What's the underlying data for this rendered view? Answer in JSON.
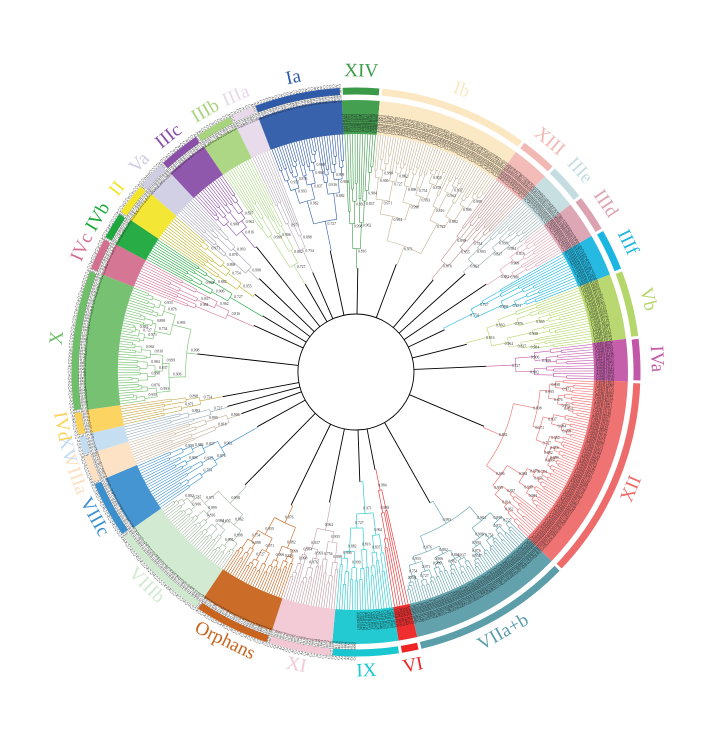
{
  "figure": {
    "type": "circular phylogenetic tree",
    "clades": [
      {
        "name": "XIV",
        "start": -3,
        "end": 5,
        "color": "#3a9a48"
      },
      {
        "name": "Ib",
        "start": 5,
        "end": 36,
        "color": "#fbe7c2"
      },
      {
        "name": "XIII",
        "start": 36,
        "end": 44,
        "color": "#f2b8b4"
      },
      {
        "name": "IIIe",
        "start": 44,
        "end": 52,
        "color": "#c5dde0"
      },
      {
        "name": "IIId",
        "start": 52,
        "end": 60,
        "color": "#dca2b2"
      },
      {
        "name": "IIIf",
        "start": 60,
        "end": 69,
        "color": "#1ab5e0"
      },
      {
        "name": "Vb",
        "start": 69,
        "end": 83,
        "color": "#b5d66a"
      },
      {
        "name": "IVa",
        "start": 83,
        "end": 92,
        "color": "#c256a8"
      },
      {
        "name": "XII",
        "start": 92,
        "end": 134,
        "color": "#ee6b6b"
      },
      {
        "name": "VIIa+b",
        "start": 134,
        "end": 167,
        "color": "#5b9da9"
      },
      {
        "name": "VI",
        "start": 167,
        "end": 171,
        "color": "#ee2424"
      },
      {
        "name": "IX",
        "start": 171,
        "end": 185,
        "color": "#18c7cf"
      },
      {
        "name": "XI",
        "start": 185,
        "end": 198,
        "color": "#f2c8d4"
      },
      {
        "name": "Orphans",
        "start": 198,
        "end": 214,
        "color": "#c8641e"
      },
      {
        "name": "VIIIb",
        "start": 214,
        "end": 235,
        "color": "#cfe9cf"
      },
      {
        "name": "VIIIc",
        "start": 235,
        "end": 247,
        "color": "#3a8fcf"
      },
      {
        "name": "VIIIa",
        "start": 247,
        "end": 253,
        "color": "#fde0c2"
      },
      {
        "name": "XV",
        "start": 253,
        "end": 257,
        "color": "#c2dcf0"
      },
      {
        "name": "IVd",
        "start": 257,
        "end": 262,
        "color": "#fcd25a"
      },
      {
        "name": "X",
        "start": 262,
        "end": 291,
        "color": "#6fbf6a"
      },
      {
        "name": "IVc",
        "start": 291,
        "end": 298,
        "color": "#d36f8f"
      },
      {
        "name": "IVb",
        "start": 298,
        "end": 304,
        "color": "#1ca83c"
      },
      {
        "name": "II",
        "start": 304,
        "end": 311,
        "color": "#f2e52a"
      },
      {
        "name": "Va",
        "start": 311,
        "end": 317,
        "color": "#cfcde4"
      },
      {
        "name": "IIIc",
        "start": 317,
        "end": 326,
        "color": "#8a4fa8"
      },
      {
        "name": "IIIb",
        "start": 326,
        "end": 334,
        "color": "#a9d47e"
      },
      {
        "name": "IIIa",
        "start": 334,
        "end": 339,
        "color": "#e7d9ea"
      },
      {
        "name": "Ia",
        "start": 339,
        "end": 357,
        "color": "#2e5aa8"
      }
    ],
    "leaf_labels": [
      "AtbHLH142",
      "AtbHLH094",
      "AtbHLH079",
      "CsbHLH036",
      "CsbHLH116",
      "CsbHLH073",
      "CsbHLH080",
      "AtbHLH072",
      "CsbHLH123",
      "CsbHLH093",
      "AtbHLH048",
      "CsbHLH134",
      "CsbHLH092",
      "AtbHLH061",
      "CsbHLH001",
      "AtbHLH118",
      "CsbHLH146",
      "CsbHLH045",
      "AtbHLH057",
      "CsbHLH085",
      "CsbHLH125"
    ],
    "bootstrap_values": [
      "0.993",
      "0.998",
      "0.984",
      "0.837",
      "0.962",
      "0.816",
      "0.999",
      "0.906",
      "0.882",
      "0.727",
      "0.971",
      "0.898",
      "0.754",
      "0.955",
      "0.876"
    ]
  }
}
